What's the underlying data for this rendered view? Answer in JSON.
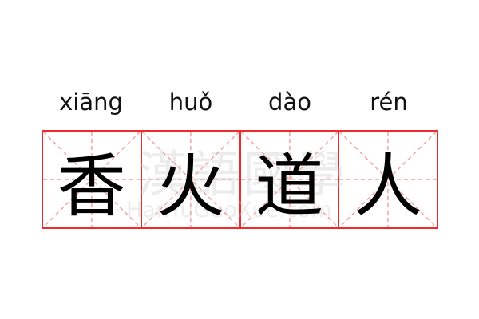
{
  "entries": [
    {
      "pinyin": "xiāng",
      "char": "香"
    },
    {
      "pinyin": "huǒ",
      "char": "火"
    },
    {
      "pinyin": "dào",
      "char": "道"
    },
    {
      "pinyin": "rén",
      "char": "人"
    }
  ],
  "watermark": {
    "chinese": "漢語國學",
    "latin": "HanYuGuoXue.com"
  },
  "colors": {
    "grid": "#f02a2a",
    "guide": "#f7a0a0"
  }
}
